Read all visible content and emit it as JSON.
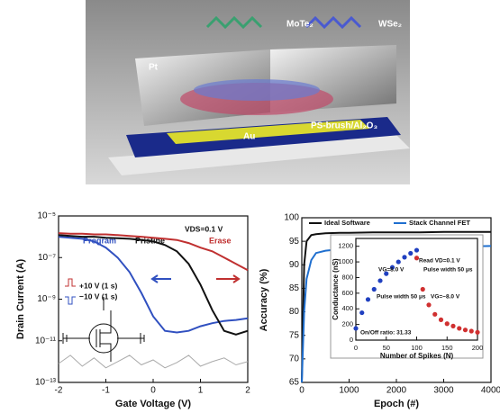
{
  "figure": {
    "labels": {
      "mote2": "MoTe₂",
      "wse2": "WSe₂",
      "pt": "Pt",
      "dielectric": "PS-brush/Al₂O₃",
      "au": "Au"
    }
  },
  "chart_data": [
    {
      "type": "line",
      "xlabel": "Gate Voltage (V)",
      "ylabel": "Drain Current (A)",
      "ylog": true,
      "x": [
        -2,
        -1.75,
        -1.5,
        -1.25,
        -1,
        -0.75,
        -0.5,
        -0.25,
        0,
        0.25,
        0.5,
        0.75,
        1,
        1.25,
        1.5,
        1.75,
        2
      ],
      "xlim": [
        -2,
        2
      ],
      "xticks": [
        -2,
        -1,
        0,
        1,
        2
      ],
      "ylim": [
        1e-13,
        1e-05
      ],
      "yticks": [
        {
          "value": 1e-13,
          "label": "10⁻¹³"
        },
        {
          "value": 1e-11,
          "label": "10⁻¹¹"
        },
        {
          "value": 1e-09,
          "label": "10⁻⁹"
        },
        {
          "value": 1e-07,
          "label": "10⁻⁷"
        },
        {
          "value": 1e-05,
          "label": "10⁻⁵"
        }
      ],
      "series": [
        {
          "name": "Program",
          "color": "#3050c0",
          "values": [
            1e-06,
            9e-07,
            8e-07,
            6e-07,
            3e-07,
            1e-07,
            2e-08,
            2e-09,
            1.5e-10,
            3e-11,
            2.5e-11,
            3e-11,
            5e-11,
            7e-11,
            9e-11,
            1e-10,
            1.2e-10
          ]
        },
        {
          "name": "Pristine",
          "color": "#111111",
          "values": [
            1.2e-06,
            1.1e-06,
            1e-06,
            1e-06,
            9e-07,
            8.5e-07,
            8e-07,
            7e-07,
            6e-07,
            4e-07,
            2e-07,
            5e-08,
            5e-09,
            3e-10,
            3e-11,
            2e-11,
            3e-11
          ]
        },
        {
          "name": "Erase",
          "color": "#c03030",
          "values": [
            1.5e-06,
            1.4e-06,
            1.4e-06,
            1.3e-06,
            1.3e-06,
            1.2e-06,
            1.1e-06,
            1e-06,
            9e-07,
            8e-07,
            7e-07,
            5e-07,
            3e-07,
            2e-07,
            1e-07,
            5e-08,
            2.5e-08
          ]
        },
        {
          "color": "#aaaaaa",
          "values": [
            8e-13,
            2e-12,
            6e-13,
            1.5e-12,
            5e-13,
            1e-12,
            2e-12,
            7e-13,
            1.2e-12,
            5e-13,
            9e-13,
            2e-12,
            6e-13,
            1e-12,
            1.5e-12,
            7e-13,
            1e-12
          ]
        }
      ],
      "annotations": [
        "VDS=0.1 V",
        "+10 V (1 s)",
        "−10 V (1 s)"
      ]
    },
    {
      "type": "line",
      "xlabel": "Epoch (#)",
      "ylabel": "Accuracy (%)",
      "x": [
        0,
        50,
        100,
        200,
        300,
        500,
        800,
        1000,
        1500,
        2000,
        2500,
        3000,
        3500,
        4000
      ],
      "xlim": [
        0,
        4000
      ],
      "xticks": [
        0,
        1000,
        2000,
        3000,
        4000
      ],
      "ylim": [
        65,
        100
      ],
      "yticks": [
        65,
        70,
        75,
        80,
        85,
        90,
        95,
        100
      ],
      "legend": "top",
      "series": [
        {
          "name": "Ideal Software",
          "color": "#111111",
          "values": [
            65,
            90,
            95,
            96.3,
            96.5,
            96.7,
            96.8,
            96.8,
            96.9,
            96.9,
            96.9,
            97,
            97,
            97
          ]
        },
        {
          "name": "Stack Channel FET",
          "color": "#1f6fcf",
          "values": [
            65,
            80,
            87,
            91,
            92.5,
            93,
            93.3,
            93.5,
            93.7,
            93.8,
            93.8,
            93.9,
            93.9,
            94
          ]
        }
      ]
    },
    {
      "type": "scatter",
      "xlabel": "Number of Spikes (N)",
      "ylabel": "Conductance (nS)",
      "xlim": [
        0,
        200
      ],
      "xticks": [
        0,
        50,
        100,
        150,
        200
      ],
      "ylim": [
        0,
        1300
      ],
      "yticks": [
        0,
        200,
        400,
        600,
        800,
        1000,
        1200
      ],
      "series": [
        {
          "color": "#2040c0",
          "x": [
            0,
            10,
            20,
            30,
            40,
            50,
            60,
            70,
            80,
            90,
            100
          ],
          "values": [
            150,
            350,
            520,
            650,
            760,
            850,
            930,
            1000,
            1060,
            1110,
            1150
          ]
        },
        {
          "color": "#d03030",
          "x": [
            100,
            110,
            120,
            130,
            140,
            150,
            160,
            170,
            180,
            190,
            200
          ],
          "values": [
            1050,
            650,
            450,
            330,
            260,
            210,
            180,
            150,
            130,
            115,
            100
          ]
        }
      ],
      "annotations": [
        "VG=8.0 V",
        "Pulse width 50 μs",
        "Read VD=0.1 V",
        "Pulse width 50 μs",
        "VG=−8.0 V",
        "On/Off ratio: 31.33"
      ]
    }
  ]
}
